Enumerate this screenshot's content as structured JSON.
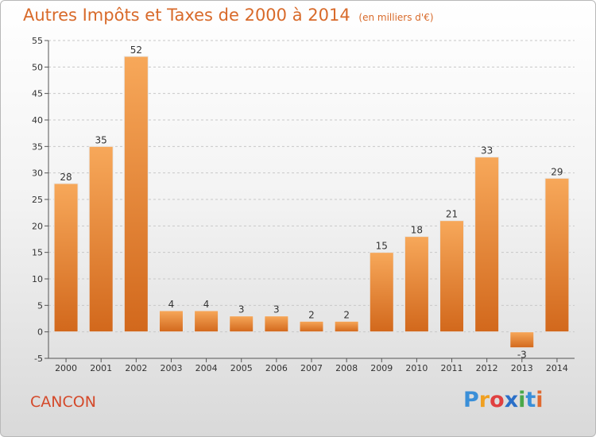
{
  "title": "Autres Impôts et Taxes de 2000 à 2014",
  "unit_label": "(en milliers d'€)",
  "city": "CANCON",
  "logo": {
    "letters": [
      "P",
      "r",
      "o",
      "x",
      "i",
      "t",
      "i"
    ],
    "colors": [
      "#3a8fd8",
      "#f0a020",
      "#e04040",
      "#2a6fc8",
      "#4aa84a",
      "#3a8fd8",
      "#e06a30"
    ]
  },
  "colors": {
    "title": "#d86a2a",
    "bar_top": "#f7a85a",
    "bar_bottom": "#d2681c",
    "grid": "#c8c8c8",
    "axis": "#555555"
  },
  "chart_data": {
    "type": "bar",
    "title": "Autres Impôts et Taxes de 2000 à 2014",
    "ylabel": "",
    "xlabel": "",
    "categories": [
      "2000",
      "2001",
      "2002",
      "2003",
      "2004",
      "2005",
      "2006",
      "2007",
      "2008",
      "2009",
      "2010",
      "2011",
      "2012",
      "2013",
      "2014"
    ],
    "values": [
      28,
      35,
      52,
      4,
      4,
      3,
      3,
      2,
      2,
      15,
      18,
      21,
      33,
      -3,
      29
    ],
    "ylim": [
      -5,
      55
    ],
    "yticks": [
      -5,
      0,
      5,
      10,
      15,
      20,
      25,
      30,
      35,
      40,
      45,
      50,
      55
    ],
    "grid": true
  }
}
